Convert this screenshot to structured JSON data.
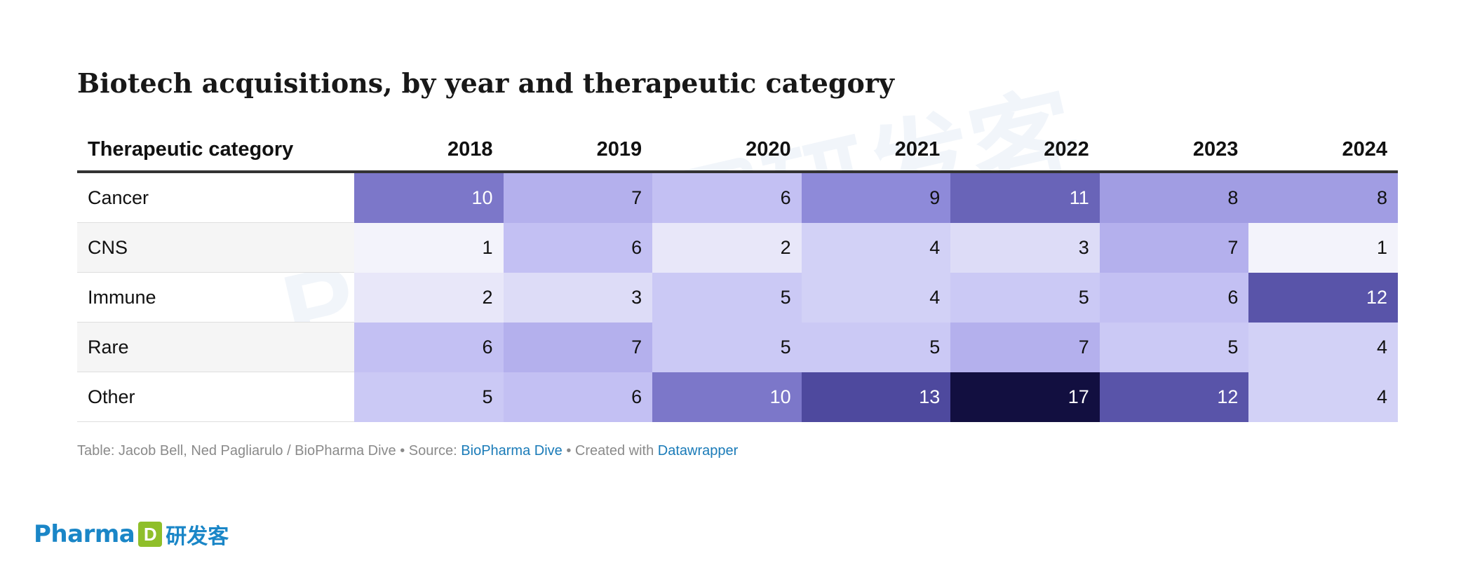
{
  "chart_data": {
    "type": "heatmap",
    "title": "Biotech acquisitions, by year and therapeutic category",
    "row_header": "Therapeutic category",
    "columns": [
      "2018",
      "2019",
      "2020",
      "2021",
      "2022",
      "2023",
      "2024"
    ],
    "rows": [
      {
        "name": "Cancer",
        "values": [
          10,
          7,
          6,
          9,
          11,
          8,
          8
        ]
      },
      {
        "name": "CNS",
        "values": [
          1,
          6,
          2,
          4,
          3,
          7,
          1
        ]
      },
      {
        "name": "Immune",
        "values": [
          2,
          3,
          5,
          4,
          5,
          6,
          12
        ]
      },
      {
        "name": "Rare",
        "values": [
          6,
          7,
          5,
          5,
          7,
          5,
          4
        ]
      },
      {
        "name": "Other",
        "values": [
          5,
          6,
          10,
          13,
          17,
          12,
          4
        ]
      }
    ],
    "value_range": [
      1,
      17
    ],
    "color_scale": [
      "#f3f3fb",
      "#d5d4f6",
      "#c0bdf3",
      "#8e8ad9",
      "#5d57ad",
      "#3e3b8f",
      "#120f40"
    ]
  },
  "footer": {
    "prefix": "Table: Jacob Bell, Ned Pagliarulo / BioPharma Dive • Source: ",
    "source_link": "BioPharma Dive",
    "middle": " • Created with ",
    "tool_link": "Datawrapper"
  },
  "logo": {
    "word": "Pharma",
    "mark": "D",
    "cn": "研发客"
  },
  "watermark": {
    "word": "Pharma",
    "mark": "D",
    "cn": "研发客"
  }
}
